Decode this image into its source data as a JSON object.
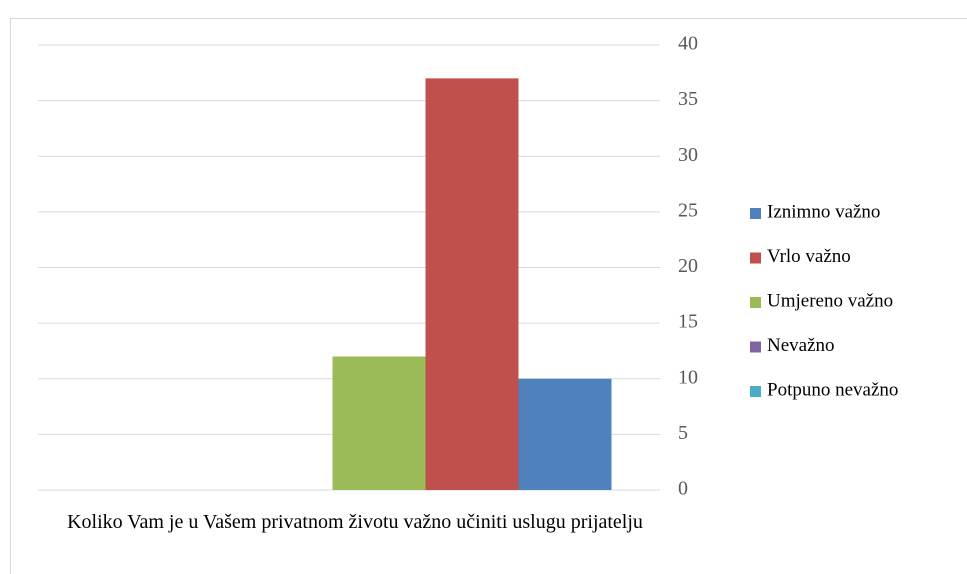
{
  "chart_data": {
    "type": "bar",
    "categories": [
      "Koliko Vam je u Vašem privatnom životu važno učiniti uslugu prijatelju"
    ],
    "series": [
      {
        "name": "Iznimno važno",
        "color": "#4f81bd",
        "values": [
          10
        ]
      },
      {
        "name": "Vrlo važno",
        "color": "#c0504d",
        "values": [
          37
        ]
      },
      {
        "name": "Umjereno važno",
        "color": "#9bbb59",
        "values": [
          12
        ]
      },
      {
        "name": "Nevažno",
        "color": "#8064a2",
        "values": [
          0
        ]
      },
      {
        "name": "Potpuno nevažno",
        "color": "#4bacc6",
        "values": [
          0
        ]
      }
    ],
    "ylim": [
      0,
      40
    ],
    "yticks": [
      0,
      5,
      10,
      15,
      20,
      25,
      30,
      35,
      40
    ],
    "grid": true,
    "legend": "right"
  }
}
